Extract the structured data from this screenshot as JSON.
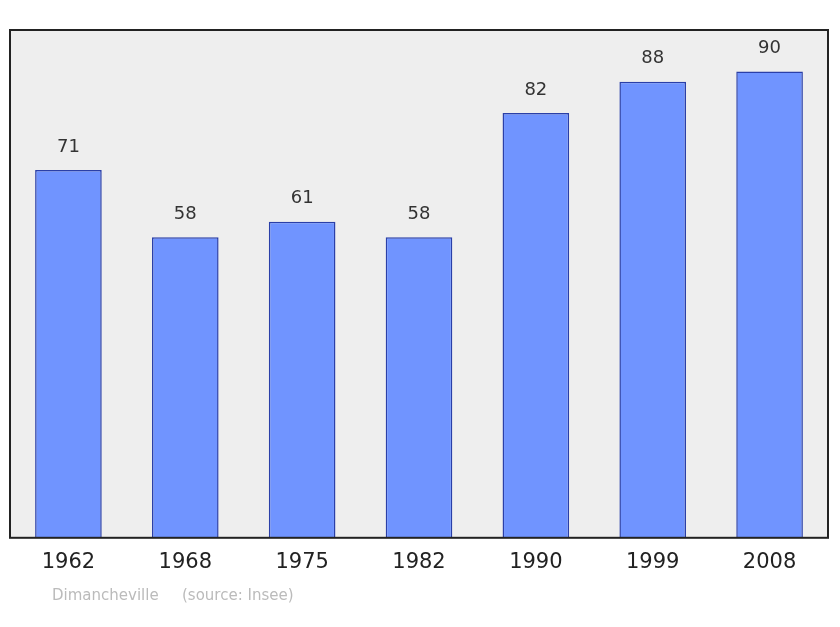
{
  "chart_data": {
    "type": "bar",
    "categories": [
      "1962",
      "1968",
      "1975",
      "1982",
      "1990",
      "1999",
      "2008"
    ],
    "values": [
      71,
      58,
      61,
      58,
      82,
      88,
      90
    ],
    "color": "#7094ff",
    "ylim": [
      0,
      98
    ],
    "grid": false,
    "data_labels": true,
    "tick_labels": "x",
    "annotations": [
      "Dimancheville",
      "(source: Insee)"
    ]
  }
}
